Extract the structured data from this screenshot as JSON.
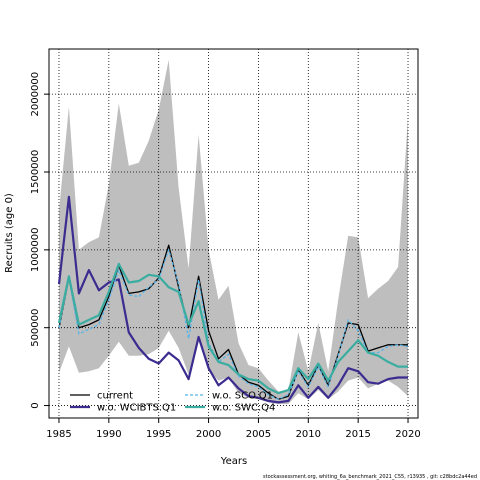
{
  "chart_data": {
    "type": "line",
    "xlabel": "Years",
    "ylabel": "Recruits (age 0)",
    "xlim": [
      1984,
      2021
    ],
    "ylim": [
      -80000,
      2290000
    ],
    "xticks": [
      1985,
      1990,
      1995,
      2000,
      2005,
      2010,
      2015,
      2020
    ],
    "yticks": [
      0,
      500000,
      1000000,
      1500000,
      2000000
    ],
    "ytick_labels": [
      "0",
      "500000",
      "1000000",
      "1500000",
      "2000000"
    ],
    "grid": true,
    "legend_position": "bottom-center",
    "x": [
      1985,
      1986,
      1987,
      1988,
      1989,
      1990,
      1991,
      1992,
      1993,
      1994,
      1995,
      1996,
      1997,
      1998,
      1999,
      2000,
      2001,
      2002,
      2003,
      2004,
      2005,
      2006,
      2007,
      2008,
      2009,
      2010,
      2011,
      2012,
      2013,
      2014,
      2015,
      2016,
      2017,
      2018,
      2019,
      2020
    ],
    "band": {
      "color": "#bebebe",
      "upper": [
        1250000,
        1920000,
        1000000,
        1050000,
        1080000,
        1420000,
        1940000,
        1540000,
        1560000,
        1700000,
        1900000,
        2220000,
        1400000,
        880000,
        1740000,
        1000000,
        680000,
        770000,
        400000,
        260000,
        240000,
        160000,
        90000,
        100000,
        470000,
        220000,
        530000,
        220000,
        680000,
        1090000,
        1080000,
        690000,
        750000,
        800000,
        890000,
        1850000
      ],
      "lower": [
        210000,
        380000,
        210000,
        220000,
        240000,
        320000,
        410000,
        320000,
        320000,
        330000,
        370000,
        480000,
        370000,
        200000,
        430000,
        230000,
        160000,
        180000,
        80000,
        50000,
        40000,
        20000,
        10000,
        10000,
        80000,
        40000,
        100000,
        40000,
        90000,
        160000,
        180000,
        110000,
        140000,
        160000,
        120000,
        60000
      ]
    },
    "series": [
      {
        "name": "current",
        "color": "#000000",
        "width": 1.3,
        "dash": "",
        "values": [
          500000,
          820000,
          500000,
          520000,
          550000,
          700000,
          900000,
          720000,
          730000,
          750000,
          820000,
          1030000,
          760000,
          500000,
          830000,
          480000,
          300000,
          360000,
          200000,
          150000,
          130000,
          80000,
          40000,
          60000,
          230000,
          130000,
          260000,
          130000,
          330000,
          530000,
          520000,
          350000,
          370000,
          390000,
          390000,
          390000
        ]
      },
      {
        "name": "w.o. WCIBTS.Q1",
        "color": "#3b2c8f",
        "width": 2.2,
        "dash": "",
        "values": [
          780000,
          1340000,
          720000,
          870000,
          740000,
          790000,
          810000,
          470000,
          370000,
          300000,
          270000,
          340000,
          290000,
          170000,
          440000,
          240000,
          130000,
          180000,
          110000,
          60000,
          50000,
          30000,
          20000,
          30000,
          130000,
          50000,
          120000,
          50000,
          130000,
          240000,
          220000,
          150000,
          140000,
          170000,
          180000,
          180000
        ]
      },
      {
        "name": "w.o. SCO.Q1",
        "color": "#56b4e9",
        "width": 1.3,
        "dash": "3,2",
        "values": [
          500000,
          820000,
          460000,
          490000,
          520000,
          680000,
          870000,
          710000,
          700000,
          760000,
          810000,
          1000000,
          780000,
          430000,
          810000,
          400000,
          280000,
          330000,
          190000,
          140000,
          120000,
          70000,
          40000,
          70000,
          220000,
          120000,
          250000,
          120000,
          320000,
          550000,
          480000,
          340000,
          340000,
          380000,
          390000,
          380000
        ]
      },
      {
        "name": "w.o. SWC.Q4",
        "color": "#3aada0",
        "width": 2.2,
        "dash": "",
        "values": [
          530000,
          830000,
          520000,
          550000,
          580000,
          730000,
          910000,
          790000,
          800000,
          840000,
          830000,
          760000,
          730000,
          520000,
          670000,
          380000,
          280000,
          260000,
          200000,
          170000,
          160000,
          110000,
          80000,
          100000,
          240000,
          170000,
          270000,
          160000,
          280000,
          350000,
          420000,
          340000,
          320000,
          280000,
          250000,
          250000
        ]
      }
    ],
    "footer": "stockassessment.org,  whiting_6a_benchmark_2021_C55,  r13935 ,  git: c28bdc2a44ed"
  }
}
